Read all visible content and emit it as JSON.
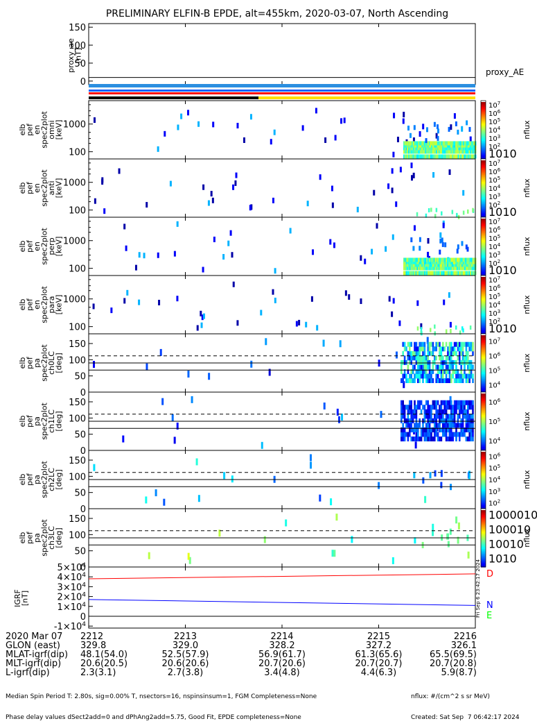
{
  "title": "PRELIMINARY ELFIN-B EPDE, alt=455km, 2020-03-07, North Ascending",
  "timestamp_vertical": "Fri Sep  6 23:42:17 2024",
  "panels": [
    {
      "ylabel": [
        "proxy_ae",
        "[nT]"
      ],
      "right_label": "proxy_AE"
    },
    {
      "ylabel": [
        "elb",
        "pef",
        "en",
        "spec2plot",
        "omni",
        "[keV]"
      ],
      "cbar_label": "nflux"
    },
    {
      "ylabel": [
        "elb",
        "pef",
        "en",
        "spec2plot",
        "anti",
        "[keV]"
      ],
      "cbar_label": "nflux"
    },
    {
      "ylabel": [
        "elb",
        "pef",
        "en",
        "spec2plot",
        "perp",
        "[keV]"
      ],
      "cbar_label": "nflux"
    },
    {
      "ylabel": [
        "elb",
        "pef",
        "en",
        "spec2plot",
        "para",
        "[keV]"
      ],
      "cbar_label": "nflux"
    },
    {
      "ylabel": [
        "elb",
        "pef",
        "pa",
        "spec2plot",
        "ch0LC",
        "[deg]"
      ],
      "cbar_label": "nflux"
    },
    {
      "ylabel": [
        "elb",
        "pef",
        "pa",
        "spec2plot",
        "ch1LC",
        "[deg]"
      ],
      "cbar_label": "nflux"
    },
    {
      "ylabel": [
        "elb",
        "pef",
        "pa",
        "spec2plot",
        "ch2LC",
        "[deg]"
      ],
      "cbar_label": "nflux"
    },
    {
      "ylabel": [
        "elb",
        "pef",
        "pa",
        "spec2plot",
        "ch3LC",
        "[deg]"
      ],
      "cbar_label": "nflux"
    },
    {
      "ylabel": [
        "IGRF",
        "[nT]"
      ]
    }
  ],
  "legend": {
    "D": "D",
    "N": "N",
    "E": "E",
    "D_color": "#ff0000",
    "N_color": "#0000ff",
    "E_color": "#00ff00"
  },
  "axis_table": {
    "rows": [
      {
        "label": "2020 Mar 07",
        "values": [
          "2212",
          "2213",
          "2214",
          "2215",
          "2216"
        ]
      },
      {
        "label": "GLON (east)",
        "values": [
          "329.8",
          "329.0",
          "328.2",
          "327.2",
          "326.1"
        ]
      },
      {
        "label": "MLAT-igrf(dip)",
        "values": [
          "48.1(54.0)",
          "52.5(57.9)",
          "56.9(61.7)",
          "61.3(65.6)",
          "65.5(69.5)"
        ]
      },
      {
        "label": "MLT-igrf(dip)",
        "values": [
          "20.6(20.5)",
          "20.6(20.6)",
          "20.7(20.6)",
          "20.7(20.7)",
          "20.7(20.8)"
        ]
      },
      {
        "label": "L-igrf(dip)",
        "values": [
          "2.3(3.1)",
          "2.7(3.8)",
          "3.4(4.8)",
          "4.4(6.3)",
          "5.9(8.7)"
        ]
      }
    ]
  },
  "footer": {
    "line1": "Median Spin Period T: 2.80s, sig=0.00% T, nsectors=16, nspinsinsum=1, FGM Completeness=None",
    "line2": "Phase delay values dSect2add=0 and dPhAng2add=5.75, Good Fit, EPDE completeness=None",
    "right1": "nflux: #/(cm^2 s sr MeV)",
    "right2": "Created: Sat Sep  7 06:42:17 2024"
  },
  "colors": {
    "sci_bar": "#2b8fe0",
    "blue_bar": "#1060ff",
    "red_bar": "#ff0000",
    "black_bar": "#000000",
    "yellow_bar": "#ffe000"
  },
  "chart_data": [
    {
      "type": "line",
      "name": "proxy_ae",
      "ylim": [
        -10,
        160
      ],
      "yticks": [
        0,
        50,
        100,
        150
      ],
      "series": [
        {
          "name": "proxy_AE",
          "x": [
            0,
            1
          ],
          "values": [
            10,
            10
          ]
        }
      ]
    },
    {
      "type": "heatmap",
      "name": "en_omni",
      "yscale": "log",
      "ylim": [
        55,
        7000
      ],
      "yticks": [
        100,
        1000
      ],
      "colorbar": {
        "scale": "log",
        "range": [
          10,
          10000000
        ],
        "ticks": [
          "10",
          "10^2",
          "10^3",
          "10^4",
          "10^5",
          "10^6",
          "10^7"
        ]
      },
      "note": "sparse isolated counts; dense 50-200 keV population after ~2215.3"
    },
    {
      "type": "heatmap",
      "name": "en_anti",
      "yscale": "log",
      "ylim": [
        55,
        7000
      ],
      "yticks": [
        100,
        1000
      ],
      "colorbar": {
        "scale": "log",
        "range": [
          10,
          10000000
        ],
        "ticks": [
          "10",
          "10^2",
          "10^3",
          "10^4",
          "10^5",
          "10^6",
          "10^7"
        ]
      }
    },
    {
      "type": "heatmap",
      "name": "en_perp",
      "yscale": "log",
      "ylim": [
        55,
        7000
      ],
      "yticks": [
        100,
        1000
      ],
      "colorbar": {
        "scale": "log",
        "range": [
          10,
          10000000
        ],
        "ticks": [
          "10",
          "10^2",
          "10^3",
          "10^4",
          "10^5",
          "10^6",
          "10^7"
        ]
      }
    },
    {
      "type": "heatmap",
      "name": "en_para",
      "yscale": "log",
      "ylim": [
        55,
        7000
      ],
      "yticks": [
        100,
        1000
      ],
      "colorbar": {
        "scale": "log",
        "range": [
          10,
          10000000
        ],
        "ticks": [
          "10",
          "10^2",
          "10^3",
          "10^4",
          "10^5",
          "10^6",
          "10^7"
        ]
      }
    },
    {
      "type": "heatmap",
      "name": "pa_ch0LC",
      "ylim": [
        0,
        180
      ],
      "yticks": [
        0,
        50,
        100,
        150
      ],
      "colorbar": {
        "scale": "log",
        "range": [
          3000,
          10000000
        ],
        "ticks": [
          "10^4",
          "10^5",
          "10^6",
          "10^7"
        ]
      },
      "reference_lines": [
        {
          "value": 112,
          "style": "dashed"
        },
        {
          "value": 90,
          "style": "solid"
        },
        {
          "value": 68,
          "style": "solid"
        }
      ]
    },
    {
      "type": "heatmap",
      "name": "pa_ch1LC",
      "ylim": [
        0,
        180
      ],
      "yticks": [
        0,
        50,
        100,
        150
      ],
      "colorbar": {
        "scale": "log",
        "range": [
          1000,
          10000000
        ],
        "ticks": [
          "10^4",
          "10^5",
          "10^6"
        ]
      },
      "reference_lines": [
        {
          "value": 112,
          "style": "dashed"
        },
        {
          "value": 90,
          "style": "solid"
        },
        {
          "value": 68,
          "style": "solid"
        }
      ]
    },
    {
      "type": "heatmap",
      "name": "pa_ch2LC",
      "ylim": [
        0,
        180
      ],
      "yticks": [
        0,
        50,
        100,
        150
      ],
      "colorbar": {
        "scale": "log",
        "range": [
          100,
          1000000
        ],
        "ticks": [
          "10^2",
          "10^3",
          "10^4",
          "10^5",
          "10^6"
        ]
      },
      "reference_lines": [
        {
          "value": 112,
          "style": "dashed"
        },
        {
          "value": 90,
          "style": "solid"
        },
        {
          "value": 68,
          "style": "solid"
        }
      ]
    },
    {
      "type": "heatmap",
      "name": "pa_ch3LC",
      "ylim": [
        0,
        180
      ],
      "yticks": [
        0,
        50,
        100,
        150
      ],
      "colorbar": {
        "scale": "log",
        "range": [
          10,
          30000
        ],
        "ticks": [
          "10",
          "100",
          "1000",
          "10000"
        ]
      },
      "reference_lines": [
        {
          "value": 112,
          "style": "dashed"
        },
        {
          "value": 90,
          "style": "solid"
        },
        {
          "value": 68,
          "style": "solid"
        }
      ]
    },
    {
      "type": "line",
      "name": "igrf",
      "ylim": [
        -12000,
        50000
      ],
      "yticks": [
        "-1x10^4",
        "0",
        "1x10^4",
        "2x10^4",
        "3x10^4",
        "4x10^4",
        "5x10^4"
      ],
      "series": [
        {
          "name": "D",
          "color": "#ff0000",
          "x": [
            0,
            1
          ],
          "values": [
            38000,
            43000
          ]
        },
        {
          "name": "N",
          "color": "#0000ff",
          "x": [
            0,
            1
          ],
          "values": [
            17000,
            11000
          ]
        },
        {
          "name": "E",
          "color": "#00ff00",
          "x": [
            0,
            1
          ],
          "values": [
            0,
            0
          ]
        }
      ]
    }
  ]
}
